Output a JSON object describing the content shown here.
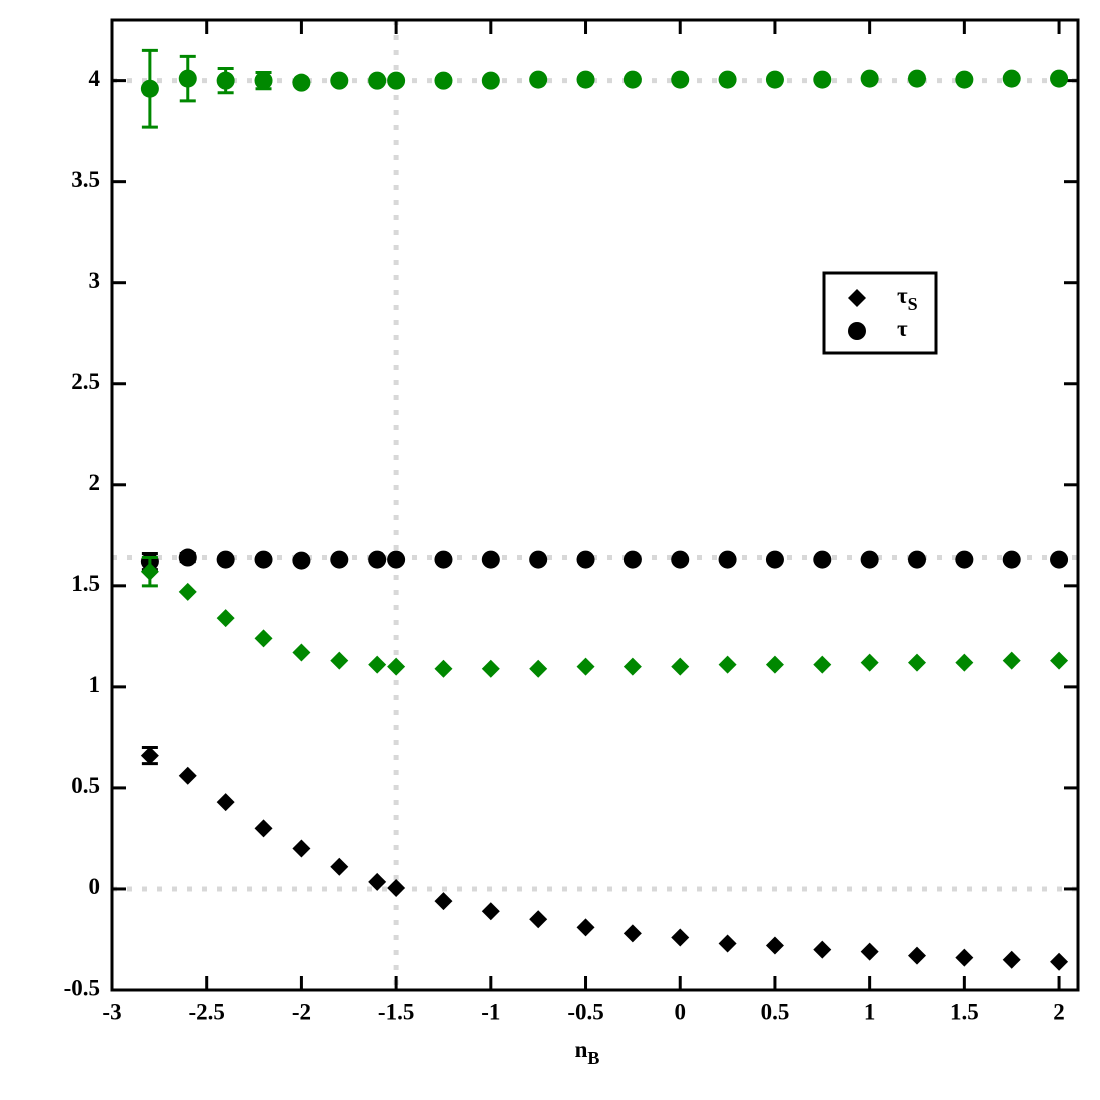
{
  "chart_data": {
    "type": "scatter",
    "x_label": {
      "text": "n",
      "subscript": "B"
    },
    "x": [
      -2.8,
      -2.6,
      -2.4,
      -2.2,
      -2.0,
      -1.8,
      -1.6,
      -1.5,
      -1.25,
      -1.0,
      -0.75,
      -0.5,
      -0.25,
      0,
      0.25,
      0.5,
      0.75,
      1.0,
      1.25,
      1.5,
      1.75,
      2.0
    ],
    "series": [
      {
        "color": "#008800",
        "marker": "circle",
        "values": [
          3.96,
          4.01,
          4.0,
          4.0,
          3.99,
          4.0,
          4.0,
          4.0,
          4.0,
          4.0,
          4.005,
          4.005,
          4.005,
          4.005,
          4.005,
          4.005,
          4.005,
          4.01,
          4.01,
          4.005,
          4.01,
          4.01
        ],
        "errors": [
          0.19,
          0.11,
          0.06,
          0.04,
          null,
          null,
          null,
          null,
          null,
          null,
          null,
          null,
          null,
          null,
          null,
          null,
          null,
          null,
          null,
          null,
          null,
          null
        ]
      },
      {
        "color": "#000000",
        "marker": "circle",
        "values": [
          1.62,
          1.64,
          1.63,
          1.63,
          1.625,
          1.63,
          1.63,
          1.63,
          1.63,
          1.63,
          1.63,
          1.63,
          1.63,
          1.63,
          1.63,
          1.63,
          1.63,
          1.63,
          1.63,
          1.63,
          1.63,
          1.63
        ],
        "errors": [
          0.04,
          0.02,
          null,
          null,
          null,
          null,
          null,
          null,
          null,
          null,
          null,
          null,
          null,
          null,
          null,
          null,
          null,
          null,
          null,
          null,
          null,
          null
        ]
      },
      {
        "color": "#008800",
        "marker": "diamond",
        "values": [
          1.57,
          1.47,
          1.34,
          1.24,
          1.17,
          1.13,
          1.11,
          1.1,
          1.09,
          1.09,
          1.09,
          1.1,
          1.1,
          1.1,
          1.11,
          1.11,
          1.11,
          1.12,
          1.12,
          1.12,
          1.13,
          1.13
        ],
        "errors": [
          0.07,
          null,
          null,
          null,
          null,
          null,
          null,
          null,
          null,
          null,
          null,
          null,
          null,
          null,
          null,
          null,
          null,
          null,
          null,
          null,
          null,
          null
        ]
      },
      {
        "color": "#000000",
        "marker": "diamond",
        "values": [
          0.66,
          0.56,
          0.43,
          0.3,
          0.2,
          0.11,
          0.035,
          0.005,
          -0.06,
          -0.11,
          -0.15,
          -0.19,
          -0.22,
          -0.24,
          -0.27,
          -0.28,
          -0.3,
          -0.31,
          -0.33,
          -0.34,
          -0.35,
          -0.36
        ],
        "errors": [
          0.04,
          null,
          null,
          null,
          null,
          null,
          null,
          null,
          null,
          null,
          null,
          null,
          null,
          null,
          null,
          null,
          null,
          null,
          null,
          null,
          null,
          null
        ]
      }
    ],
    "legend": [
      {
        "label": "τ",
        "subscript": "S",
        "marker": "diamond"
      },
      {
        "label": "τ",
        "marker": "circle"
      }
    ],
    "reference_lines": {
      "x": [
        -1.5
      ],
      "y": [
        4,
        1.64,
        0
      ]
    },
    "xlim": [
      -3,
      2.1
    ],
    "ylim": [
      -0.5,
      4.3
    ],
    "xticks": [
      -3,
      -2.5,
      -2,
      -1.5,
      -1,
      -0.5,
      0,
      0.5,
      1,
      1.5,
      2
    ],
    "yticks": [
      -0.5,
      0,
      0.5,
      1,
      1.5,
      2,
      2.5,
      3,
      3.5,
      4
    ]
  }
}
